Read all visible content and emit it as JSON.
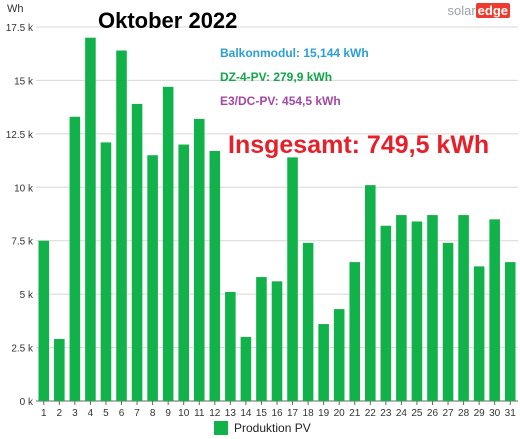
{
  "brand": {
    "solar": "solar",
    "edge": "edge"
  },
  "annotations": {
    "title": "Oktober 2022",
    "balkon": "Balkonmodul: 15,144 kWh",
    "dz4": "DZ-4-PV: 279,9 kWh",
    "e3dc": "E3/DC-PV: 454,5 kWh",
    "total": "Insgesamt: 749,5 kWh"
  },
  "colors": {
    "bar": "#12b24b",
    "total": "#e5202a",
    "balkon": "#2a9fd6",
    "dz4": "#12a54a",
    "e3dc": "#a349a4"
  },
  "chart_data": {
    "type": "bar",
    "title": "Oktober 2022",
    "ylabel": "Wh",
    "categories": [
      "1",
      "2",
      "3",
      "4",
      "5",
      "6",
      "7",
      "8",
      "9",
      "10",
      "11",
      "12",
      "13",
      "14",
      "15",
      "16",
      "17",
      "18",
      "19",
      "20",
      "21",
      "22",
      "23",
      "24",
      "25",
      "26",
      "27",
      "28",
      "29",
      "30",
      "31"
    ],
    "series": [
      {
        "name": "Produktion PV",
        "values": [
          7500,
          2900,
          13300,
          17000,
          12100,
          16400,
          13900,
          11500,
          14700,
          12000,
          13200,
          11700,
          5100,
          3000,
          5800,
          5600,
          11400,
          7400,
          3600,
          4300,
          6500,
          10100,
          8200,
          8700,
          8400,
          8700,
          7400,
          8700,
          6300,
          8500,
          6500
        ]
      }
    ],
    "ylim": [
      0,
      17500
    ],
    "yticks": [
      0,
      2500,
      5000,
      7500,
      10000,
      12500,
      15000,
      17500
    ],
    "ytick_labels": [
      "0 k",
      "2.5 k",
      "5 k",
      "7.5 k",
      "10 k",
      "12.5 k",
      "15 k",
      "17.5 k"
    ],
    "grid": true,
    "legend": "bottom"
  }
}
